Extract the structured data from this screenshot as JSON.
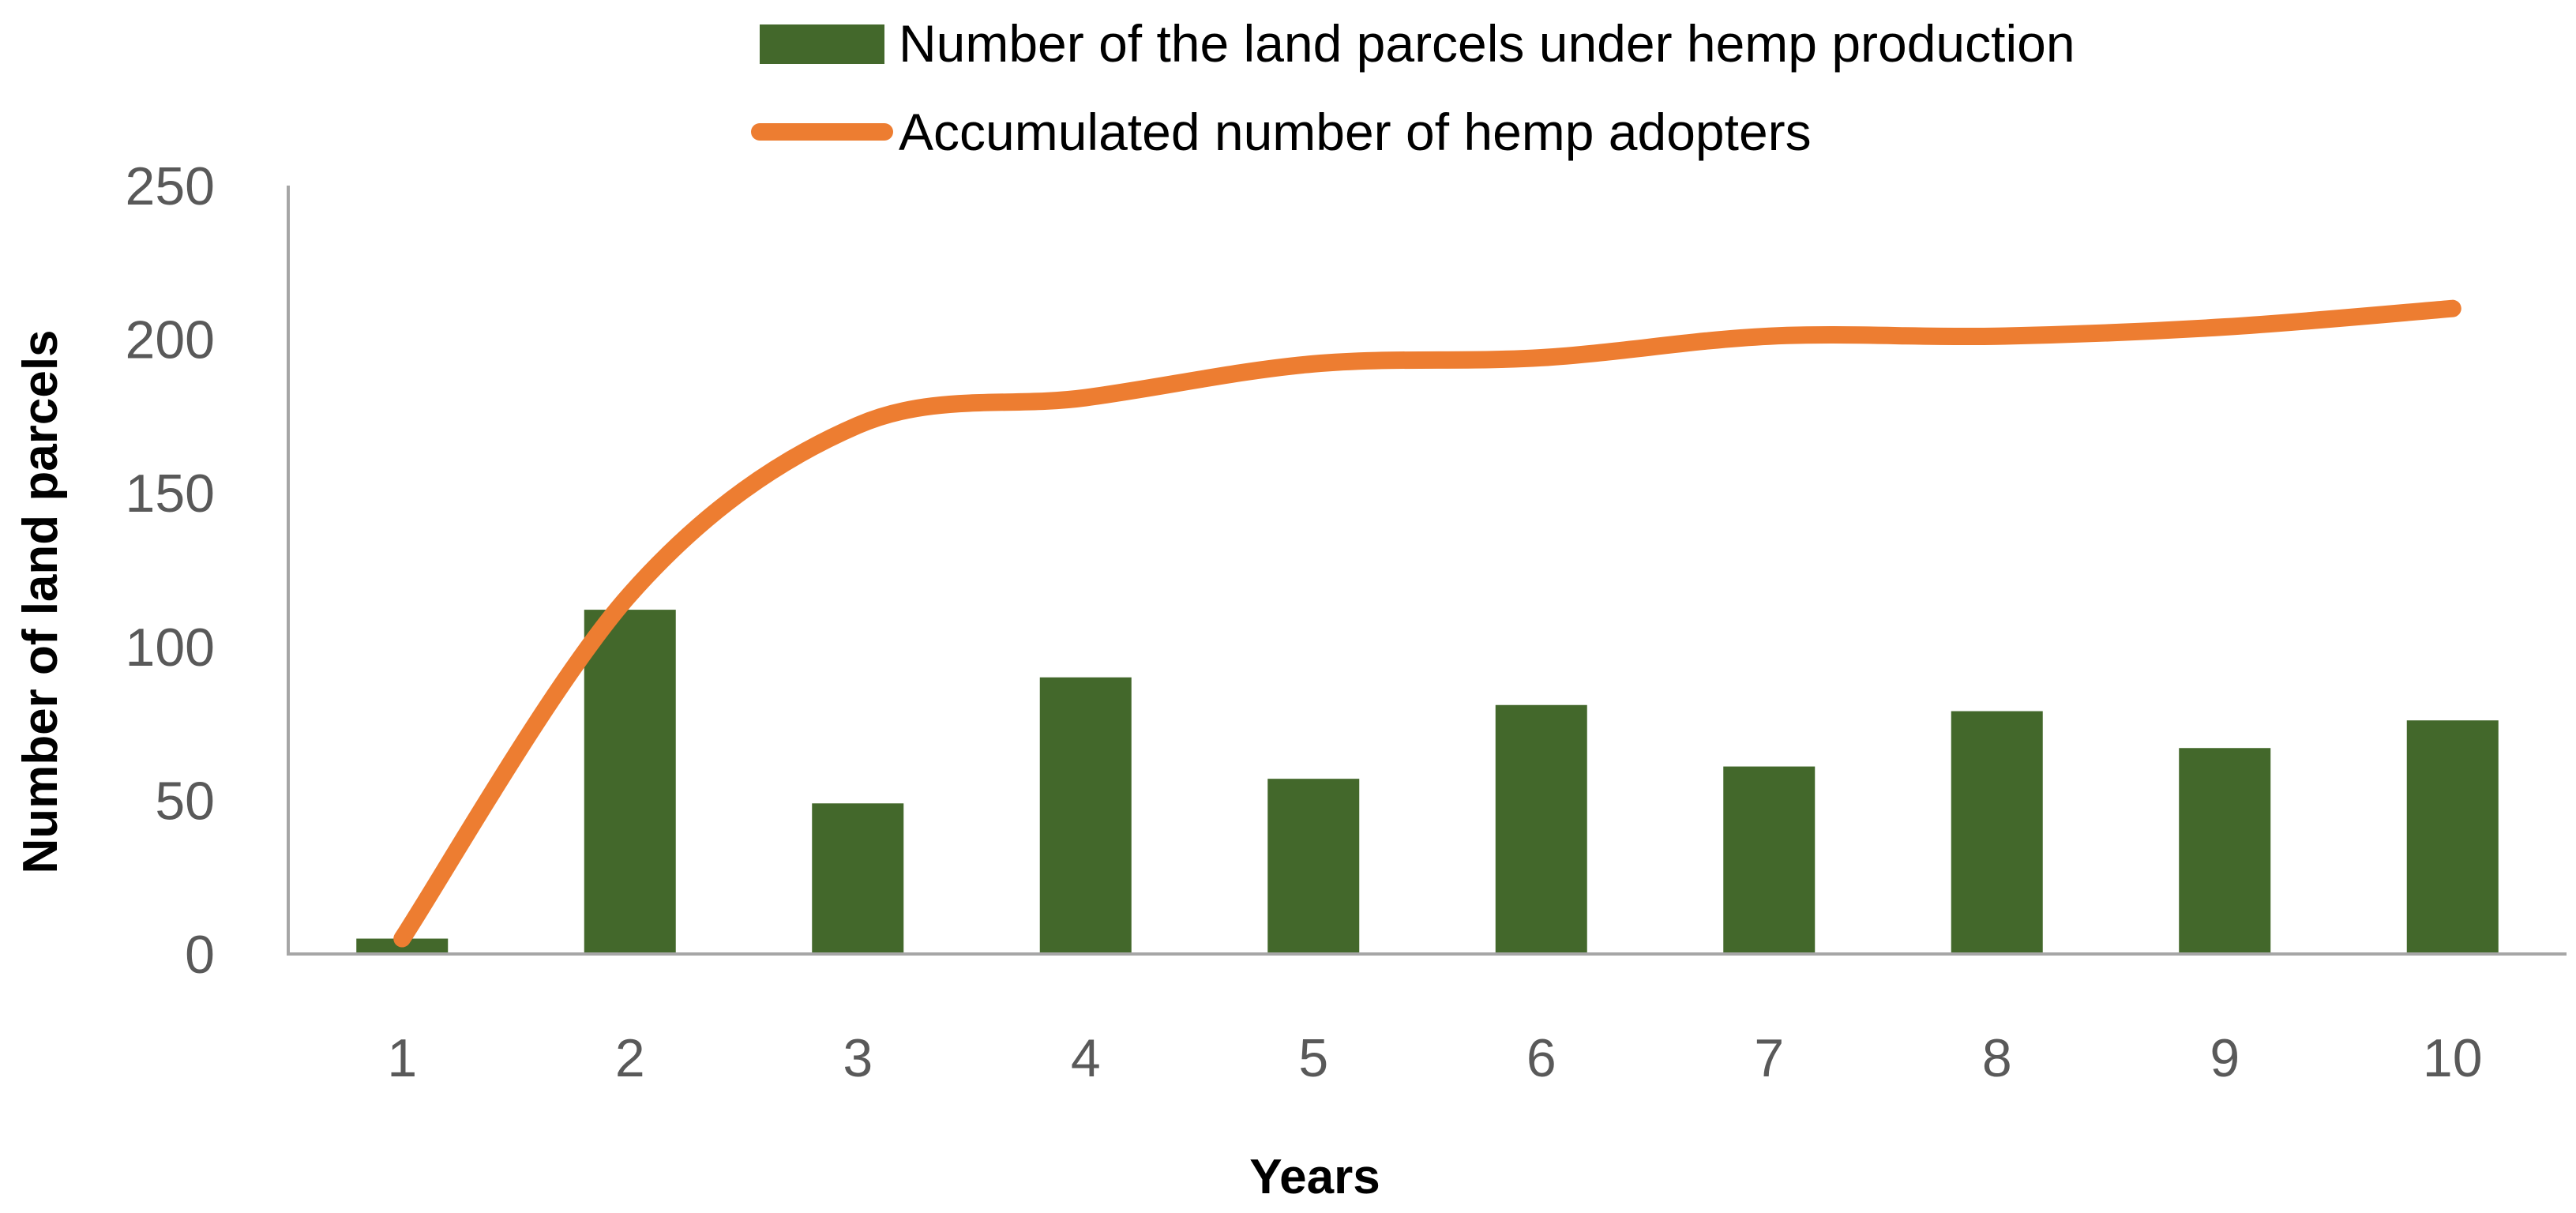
{
  "chart_data": {
    "type": "bar",
    "categories": [
      "1",
      "2",
      "3",
      "4",
      "5",
      "6",
      "7",
      "8",
      "9",
      "10"
    ],
    "series": [
      {
        "name": "Number of the land parcels under hemp production",
        "type": "bar",
        "color": "#43682b",
        "values": [
          5,
          112,
          49,
          90,
          57,
          81,
          61,
          79,
          67,
          76
        ]
      },
      {
        "name": "Accumulated number of hemp adopters",
        "type": "line",
        "smooth": true,
        "color": "#ed7d31",
        "values": [
          5,
          117,
          172,
          181,
          192,
          194,
          201,
          201,
          204,
          210
        ]
      }
    ],
    "xlabel": "Years",
    "ylabel": "Number of land parcels",
    "ylim": [
      0,
      250
    ],
    "yticks": [
      "0",
      "50",
      "100",
      "150",
      "200",
      "250"
    ],
    "grid": false,
    "legend_position": "top"
  }
}
